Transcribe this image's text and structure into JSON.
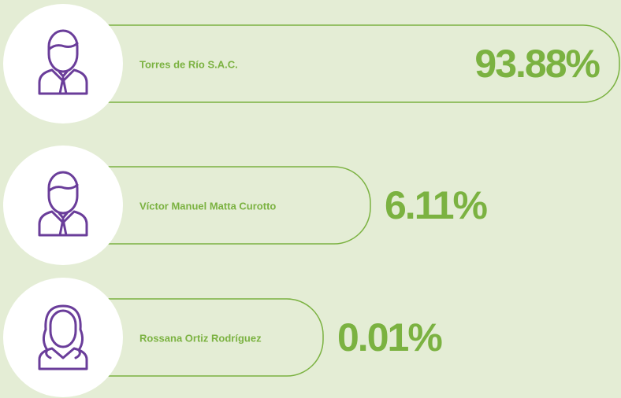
{
  "items": [
    {
      "name": "Torres de Río S.A.C.",
      "share": "93.88%"
    },
    {
      "name": "Víctor Manuel Matta Curotto",
      "share": "6.11%"
    },
    {
      "name": "Rossana Ortiz Rodríguez",
      "share": "0.01%"
    }
  ]
}
